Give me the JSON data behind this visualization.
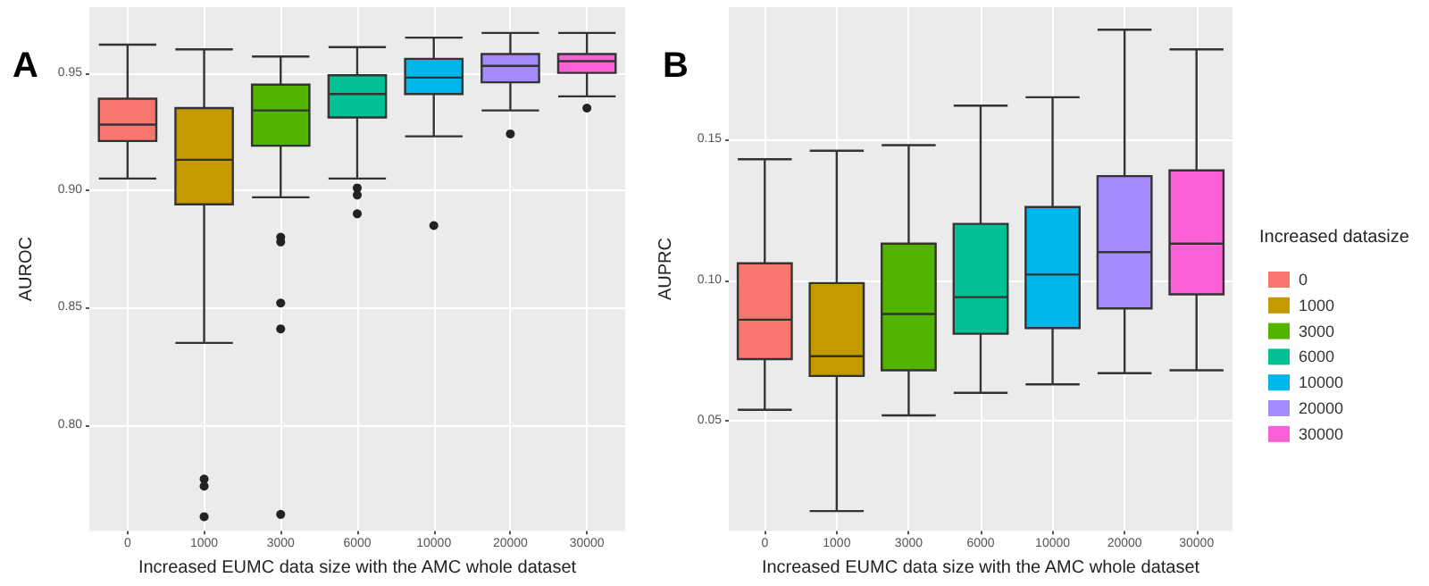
{
  "chart_data": [
    {
      "type": "box",
      "title": "A",
      "xlabel": "Increased EUMC data size with the AMC whole dataset",
      "ylabel": "AUROC",
      "categories": [
        "0",
        "1000",
        "3000",
        "6000",
        "10000",
        "20000",
        "30000"
      ],
      "series": [
        {
          "color": "#f8766d",
          "boxes": [
            {
              "low": 0.905,
              "q1": 0.921,
              "median": 0.928,
              "q3": 0.939,
              "high": 0.962
            },
            null,
            null,
            null,
            null,
            null,
            null
          ]
        },
        {
          "color": "#c49a00",
          "boxes": [
            null,
            {
              "low": 0.835,
              "q1": 0.894,
              "median": 0.913,
              "q3": 0.935,
              "high": 0.96,
              "outliers": [
                0.777,
                0.774,
                0.761
              ]
            },
            null,
            null,
            null,
            null,
            null
          ]
        },
        {
          "color": "#53b400",
          "boxes": [
            null,
            null,
            {
              "low": 0.897,
              "q1": 0.919,
              "median": 0.934,
              "q3": 0.945,
              "high": 0.957,
              "outliers": [
                0.88,
                0.878,
                0.852,
                0.841,
                0.762
              ]
            },
            null,
            null,
            null,
            null
          ]
        },
        {
          "color": "#00c094",
          "boxes": [
            null,
            null,
            null,
            {
              "low": 0.905,
              "q1": 0.931,
              "median": 0.941,
              "q3": 0.949,
              "high": 0.961,
              "outliers": [
                0.901,
                0.898,
                0.89
              ]
            },
            null,
            null,
            null
          ]
        },
        {
          "color": "#00b6eb",
          "boxes": [
            null,
            null,
            null,
            null,
            {
              "low": 0.923,
              "q1": 0.941,
              "median": 0.948,
              "q3": 0.956,
              "high": 0.965,
              "outliers": [
                0.885
              ]
            },
            null,
            null
          ]
        },
        {
          "color": "#a58aff",
          "boxes": [
            null,
            null,
            null,
            null,
            null,
            {
              "low": 0.934,
              "q1": 0.946,
              "median": 0.953,
              "q3": 0.958,
              "high": 0.967,
              "outliers": [
                0.924
              ]
            },
            null
          ]
        },
        {
          "color": "#fb61d7",
          "boxes": [
            null,
            null,
            null,
            null,
            null,
            null,
            {
              "low": 0.94,
              "q1": 0.95,
              "median": 0.955,
              "q3": 0.958,
              "high": 0.967,
              "outliers": [
                0.935
              ]
            }
          ]
        }
      ],
      "ylim": [
        0.755,
        0.978
      ],
      "yticks": [
        {
          "value": 0.8,
          "label": "0.80"
        },
        {
          "value": 0.85,
          "label": "0.85"
        },
        {
          "value": 0.9,
          "label": "0.90"
        },
        {
          "value": 0.95,
          "label": "0.95"
        }
      ],
      "grid": true,
      "legend": false
    },
    {
      "type": "box",
      "title": "B",
      "xlabel": "Increased EUMC data size with the AMC whole dataset",
      "ylabel": "AUPRC",
      "legend_title": "Increased datasize",
      "categories": [
        "0",
        "1000",
        "3000",
        "6000",
        "10000",
        "20000",
        "30000"
      ],
      "series": [
        {
          "name": "0",
          "color": "#f8766d",
          "boxes": [
            {
              "low": 0.054,
              "q1": 0.072,
              "median": 0.086,
              "q3": 0.106,
              "high": 0.143
            },
            null,
            null,
            null,
            null,
            null,
            null
          ]
        },
        {
          "name": "1000",
          "color": "#c49a00",
          "boxes": [
            null,
            {
              "low": 0.018,
              "q1": 0.066,
              "median": 0.073,
              "q3": 0.099,
              "high": 0.146
            },
            null,
            null,
            null,
            null,
            null
          ]
        },
        {
          "name": "3000",
          "color": "#53b400",
          "boxes": [
            null,
            null,
            {
              "low": 0.052,
              "q1": 0.068,
              "median": 0.088,
              "q3": 0.113,
              "high": 0.148
            },
            null,
            null,
            null,
            null
          ]
        },
        {
          "name": "6000",
          "color": "#00c094",
          "boxes": [
            null,
            null,
            null,
            {
              "low": 0.06,
              "q1": 0.081,
              "median": 0.094,
              "q3": 0.12,
              "high": 0.162
            },
            null,
            null,
            null
          ]
        },
        {
          "name": "10000",
          "color": "#00b6eb",
          "boxes": [
            null,
            null,
            null,
            null,
            {
              "low": 0.063,
              "q1": 0.083,
              "median": 0.102,
              "q3": 0.126,
              "high": 0.165
            },
            null,
            null
          ]
        },
        {
          "name": "20000",
          "color": "#a58aff",
          "boxes": [
            null,
            null,
            null,
            null,
            null,
            {
              "low": 0.067,
              "q1": 0.09,
              "median": 0.11,
              "q3": 0.137,
              "high": 0.189
            },
            null
          ]
        },
        {
          "name": "30000",
          "color": "#fb61d7",
          "boxes": [
            null,
            null,
            null,
            null,
            null,
            null,
            {
              "low": 0.068,
              "q1": 0.095,
              "median": 0.113,
              "q3": 0.139,
              "high": 0.182
            }
          ]
        }
      ],
      "ylim": [
        0.011,
        0.197
      ],
      "yticks": [
        {
          "value": 0.05,
          "label": "0.05"
        },
        {
          "value": 0.1,
          "label": "0.10"
        },
        {
          "value": 0.15,
          "label": "0.15"
        }
      ],
      "grid": true,
      "legend": "right"
    }
  ]
}
